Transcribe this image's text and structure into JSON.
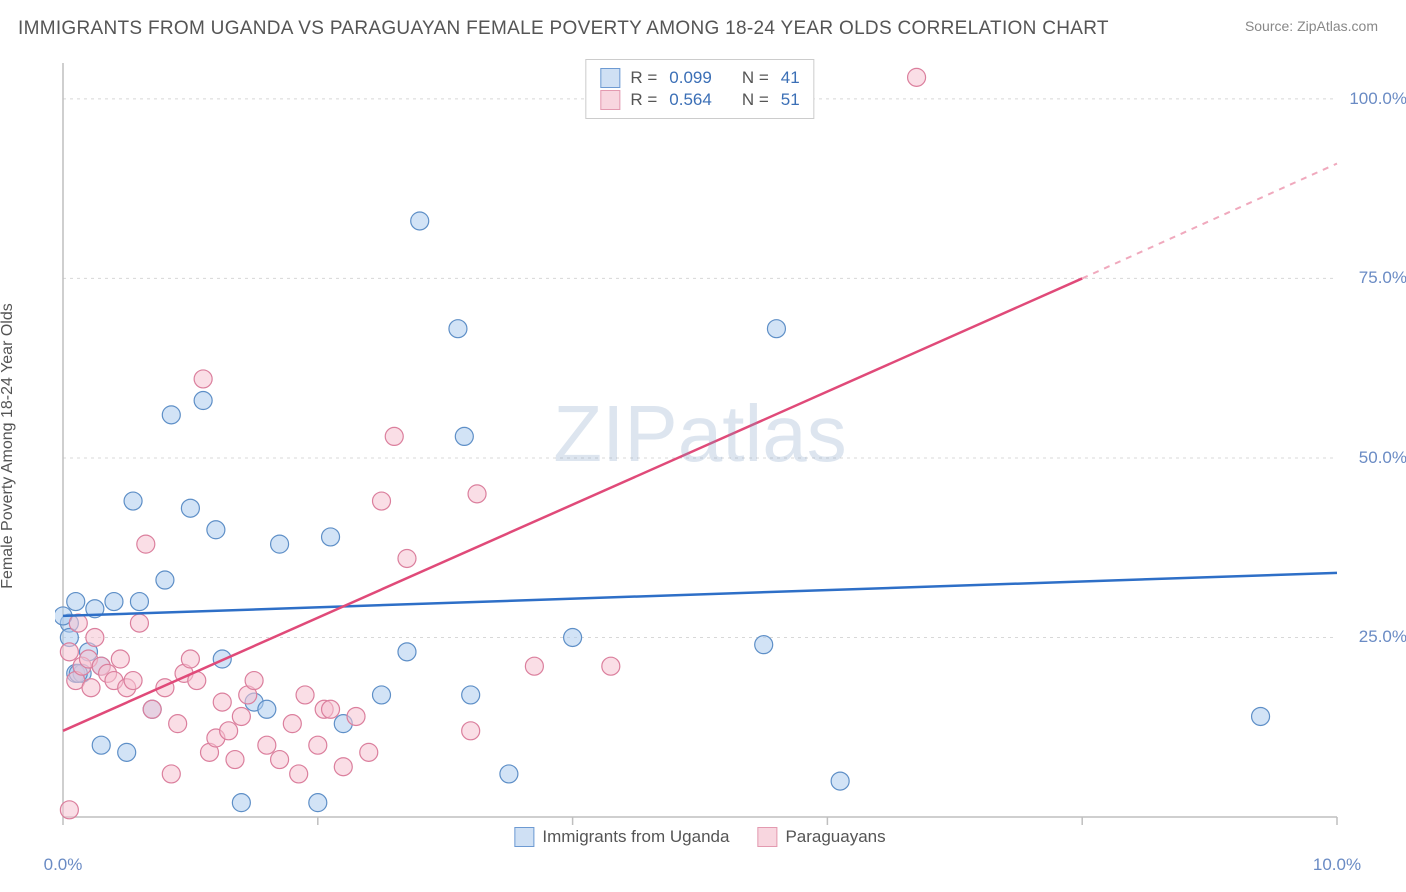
{
  "header": {
    "title": "IMMIGRANTS FROM UGANDA VS PARAGUAYAN FEMALE POVERTY AMONG 18-24 YEAR OLDS CORRELATION CHART",
    "source_prefix": "Source: ",
    "source_name": "ZipAtlas.com"
  },
  "chart": {
    "type": "scatter",
    "y_axis_label": "Female Poverty Among 18-24 Year Olds",
    "xlim": [
      0,
      10
    ],
    "ylim": [
      0,
      105
    ],
    "x_ticks": [
      0,
      2,
      4,
      6,
      8,
      10
    ],
    "x_tick_labels": [
      "0.0%",
      "",
      "",
      "",
      "",
      "10.0%"
    ],
    "y_ticks": [
      25,
      50,
      75,
      100
    ],
    "y_tick_labels": [
      "25.0%",
      "50.0%",
      "75.0%",
      "100.0%"
    ],
    "grid_color": "#d8d8d8",
    "axis_color": "#bfbfbf",
    "background_color": "#ffffff",
    "watermark": {
      "zip": "ZIP",
      "atlas": "atlas"
    },
    "legend_top": [
      {
        "r_label": "R =",
        "r_value": "0.099",
        "n_label": "N =",
        "n_value": "41",
        "swatch_fill": "#cfe0f4",
        "swatch_stroke": "#6d9ad2"
      },
      {
        "r_label": "R =",
        "r_value": "0.564",
        "n_label": "N =",
        "n_value": "51",
        "swatch_fill": "#f8d6df",
        "swatch_stroke": "#e39ab0"
      }
    ],
    "legend_bottom": [
      {
        "label": "Immigrants from Uganda",
        "swatch_fill": "#cfe0f4",
        "swatch_stroke": "#6d9ad2"
      },
      {
        "label": "Paraguayans",
        "swatch_fill": "#f8d6df",
        "swatch_stroke": "#e39ab0"
      }
    ],
    "series": [
      {
        "name": "uganda",
        "marker_fill": "rgba(173,204,238,0.55)",
        "marker_stroke": "#5e8fc7",
        "marker_radius": 9,
        "trend": {
          "x1": 0,
          "y1": 28,
          "x2": 10,
          "y2": 34,
          "color": "#2e6fc7",
          "width": 2.5
        },
        "points": [
          [
            0.05,
            27
          ],
          [
            0.1,
            20
          ],
          [
            0.15,
            20
          ],
          [
            0.2,
            23
          ],
          [
            0.25,
            29
          ],
          [
            0.3,
            21
          ],
          [
            0.4,
            30
          ],
          [
            0.5,
            9
          ],
          [
            0.55,
            44
          ],
          [
            0.6,
            30
          ],
          [
            0.7,
            15
          ],
          [
            0.8,
            33
          ],
          [
            0.85,
            56
          ],
          [
            1.0,
            43
          ],
          [
            1.1,
            58
          ],
          [
            1.2,
            40
          ],
          [
            1.25,
            22
          ],
          [
            1.4,
            2
          ],
          [
            1.5,
            16
          ],
          [
            1.6,
            15
          ],
          [
            1.7,
            38
          ],
          [
            2.0,
            2
          ],
          [
            2.1,
            39
          ],
          [
            2.2,
            13
          ],
          [
            2.5,
            17
          ],
          [
            2.7,
            23
          ],
          [
            2.8,
            83
          ],
          [
            3.1,
            68
          ],
          [
            3.15,
            53
          ],
          [
            3.2,
            17
          ],
          [
            3.5,
            6
          ],
          [
            4.0,
            25
          ],
          [
            5.5,
            24
          ],
          [
            5.6,
            68
          ],
          [
            6.1,
            5
          ],
          [
            9.4,
            14
          ],
          [
            0.0,
            28
          ],
          [
            0.05,
            25
          ],
          [
            0.1,
            30
          ],
          [
            0.12,
            20
          ],
          [
            0.3,
            10
          ]
        ]
      },
      {
        "name": "paraguay",
        "marker_fill": "rgba(245,195,210,0.55)",
        "marker_stroke": "#db7f9d",
        "marker_radius": 9,
        "trend_solid": {
          "x1": 0,
          "y1": 12,
          "x2": 8.0,
          "y2": 75,
          "color": "#e04a79",
          "width": 2.5
        },
        "trend_dashed": {
          "x1": 8.0,
          "y1": 75,
          "x2": 10,
          "y2": 91,
          "color": "#f0a9bd",
          "width": 2,
          "dash": "6 6"
        },
        "points": [
          [
            0.05,
            23
          ],
          [
            0.1,
            19
          ],
          [
            0.12,
            27
          ],
          [
            0.15,
            21
          ],
          [
            0.2,
            22
          ],
          [
            0.22,
            18
          ],
          [
            0.25,
            25
          ],
          [
            0.3,
            21
          ],
          [
            0.35,
            20
          ],
          [
            0.4,
            19
          ],
          [
            0.45,
            22
          ],
          [
            0.5,
            18
          ],
          [
            0.55,
            19
          ],
          [
            0.6,
            27
          ],
          [
            0.65,
            38
          ],
          [
            0.7,
            15
          ],
          [
            0.8,
            18
          ],
          [
            0.85,
            6
          ],
          [
            0.9,
            13
          ],
          [
            0.95,
            20
          ],
          [
            1.0,
            22
          ],
          [
            1.05,
            19
          ],
          [
            1.1,
            61
          ],
          [
            1.15,
            9
          ],
          [
            1.2,
            11
          ],
          [
            1.25,
            16
          ],
          [
            1.3,
            12
          ],
          [
            1.35,
            8
          ],
          [
            1.4,
            14
          ],
          [
            1.45,
            17
          ],
          [
            1.5,
            19
          ],
          [
            1.6,
            10
          ],
          [
            1.7,
            8
          ],
          [
            1.8,
            13
          ],
          [
            1.85,
            6
          ],
          [
            1.9,
            17
          ],
          [
            2.0,
            10
          ],
          [
            2.05,
            15
          ],
          [
            2.1,
            15
          ],
          [
            2.2,
            7
          ],
          [
            2.3,
            14
          ],
          [
            2.4,
            9
          ],
          [
            2.5,
            44
          ],
          [
            2.6,
            53
          ],
          [
            2.7,
            36
          ],
          [
            3.2,
            12
          ],
          [
            3.25,
            45
          ],
          [
            3.7,
            21
          ],
          [
            4.3,
            21
          ],
          [
            6.7,
            103
          ],
          [
            0.05,
            1
          ]
        ]
      }
    ]
  }
}
